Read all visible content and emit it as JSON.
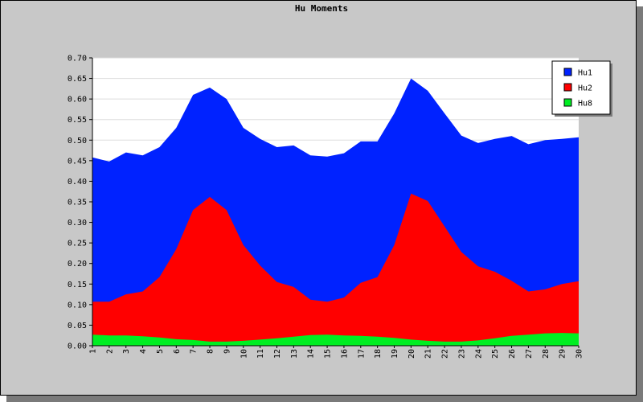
{
  "chart_data": {
    "type": "area",
    "title": "Hu Moments",
    "xlabel": "",
    "ylabel": "",
    "x": [
      1,
      2,
      3,
      4,
      5,
      6,
      7,
      8,
      9,
      10,
      11,
      12,
      13,
      14,
      15,
      16,
      17,
      18,
      19,
      20,
      21,
      22,
      23,
      24,
      25,
      26,
      27,
      28,
      29,
      30
    ],
    "ylim": [
      0,
      0.7
    ],
    "yticks": [
      "0.00",
      "0.05",
      "0.10",
      "0.15",
      "0.20",
      "0.25",
      "0.30",
      "0.35",
      "0.40",
      "0.45",
      "0.50",
      "0.55",
      "0.60",
      "0.65",
      "0.70"
    ],
    "grid": true,
    "legend_position": "top-right",
    "series": [
      {
        "name": "Hu1",
        "color": "#0022ff",
        "values": [
          0.458,
          0.448,
          0.47,
          0.463,
          0.483,
          0.53,
          0.61,
          0.628,
          0.6,
          0.53,
          0.503,
          0.483,
          0.487,
          0.463,
          0.46,
          0.468,
          0.497,
          0.497,
          0.565,
          0.65,
          0.62,
          0.565,
          0.511,
          0.493,
          0.503,
          0.51,
          0.49,
          0.5,
          0.503,
          0.507
        ]
      },
      {
        "name": "Hu2",
        "color": "#ff0000",
        "values": [
          0.107,
          0.107,
          0.125,
          0.132,
          0.167,
          0.235,
          0.33,
          0.362,
          0.33,
          0.245,
          0.195,
          0.155,
          0.143,
          0.112,
          0.107,
          0.117,
          0.153,
          0.167,
          0.245,
          0.37,
          0.352,
          0.29,
          0.228,
          0.193,
          0.18,
          0.158,
          0.132,
          0.137,
          0.15,
          0.157
        ]
      },
      {
        "name": "Hu8",
        "color": "#00ee22",
        "values": [
          0.027,
          0.025,
          0.025,
          0.023,
          0.02,
          0.016,
          0.014,
          0.01,
          0.01,
          0.012,
          0.015,
          0.018,
          0.022,
          0.026,
          0.027,
          0.025,
          0.024,
          0.022,
          0.019,
          0.015,
          0.012,
          0.01,
          0.01,
          0.013,
          0.018,
          0.024,
          0.027,
          0.03,
          0.031,
          0.03
        ]
      }
    ]
  }
}
